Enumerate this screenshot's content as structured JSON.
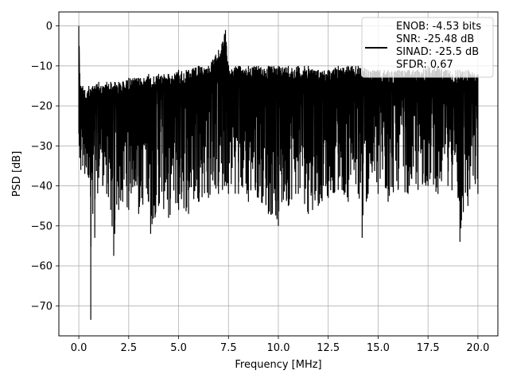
{
  "chart_data": {
    "type": "line",
    "title": "",
    "xlabel": "Frequency [MHz]",
    "ylabel": "PSD [dB]",
    "xlim": [
      -1.0,
      21.0
    ],
    "ylim": [
      -77.5,
      3.5
    ],
    "xticks": [
      0.0,
      2.5,
      5.0,
      7.5,
      10.0,
      12.5,
      15.0,
      17.5,
      20.0
    ],
    "xtick_labels": [
      "0.0",
      "2.5",
      "5.0",
      "7.5",
      "10.0",
      "12.5",
      "15.0",
      "17.5",
      "20.0"
    ],
    "yticks": [
      0,
      -10,
      -20,
      -30,
      -40,
      -50,
      -60,
      -70
    ],
    "ytick_labels": [
      "0",
      "−10",
      "−20",
      "−30",
      "−40",
      "−50",
      "−60",
      "−70"
    ],
    "grid": true,
    "legend_position": "top-right",
    "line_color": "#000000",
    "series": [
      {
        "style": "solid",
        "x": [
          0.0,
          0.02,
          0.05,
          0.1,
          0.2,
          0.3,
          0.5,
          0.6,
          0.7,
          0.8,
          1.0,
          1.2,
          1.4,
          1.6,
          1.75,
          1.8,
          2.0,
          2.2,
          2.5,
          2.8,
          3.0,
          3.5,
          3.6,
          4.0,
          4.5,
          5.0,
          5.5,
          6.0,
          6.5,
          7.0,
          7.2,
          7.3,
          7.35,
          7.4,
          7.5,
          8.0,
          8.5,
          9.0,
          9.5,
          10.0,
          10.5,
          11.0,
          11.5,
          12.0,
          12.5,
          13.0,
          13.5,
          14.0,
          14.2,
          14.5,
          15.0,
          15.5,
          16.0,
          16.5,
          17.0,
          17.5,
          18.0,
          18.5,
          19.0,
          19.1,
          19.5,
          20.0
        ],
        "y_max": [
          0,
          -5,
          -12,
          -15,
          -15,
          -16,
          -15,
          -16,
          -15,
          -15,
          -14,
          -15,
          -14,
          -14,
          -15,
          -14,
          -14,
          -14,
          -13,
          -13,
          -13,
          -12,
          -13,
          -12,
          -12,
          -11,
          -11,
          -10,
          -10,
          -6,
          -4,
          -2,
          -1,
          -5,
          -10,
          -10,
          -10,
          -10,
          -10,
          -10,
          -10,
          -10,
          -10,
          -11,
          -11,
          -10,
          -10,
          -10,
          -10,
          -11,
          -11,
          -11,
          -11,
          -11,
          -11,
          -10,
          -10,
          -11,
          -11,
          -11,
          -11,
          -12
        ],
        "y_min": [
          -27,
          -30,
          -33,
          -36,
          -35,
          -37,
          -38,
          -73.5,
          -47,
          -53,
          -38,
          -40,
          -42,
          -46,
          -57.5,
          -52,
          -46,
          -44,
          -46,
          -40,
          -47,
          -44,
          -52,
          -45,
          -48,
          -46,
          -47,
          -44,
          -43,
          -42,
          -41,
          -40,
          -39,
          -40,
          -42,
          -42,
          -44,
          -43,
          -47,
          -50,
          -45,
          -42,
          -47,
          -45,
          -43,
          -41,
          -44,
          -42,
          -53,
          -42,
          -42,
          -44,
          -41,
          -42,
          -41,
          -40,
          -42,
          -40,
          -43,
          -54,
          -45,
          -42
        ]
      }
    ],
    "legend": {
      "lines": [
        "ENOB: -4.53 bits",
        "SNR: -25.48 dB",
        "SINAD: -25.5 dB",
        "SFDR: 0.67"
      ]
    }
  }
}
